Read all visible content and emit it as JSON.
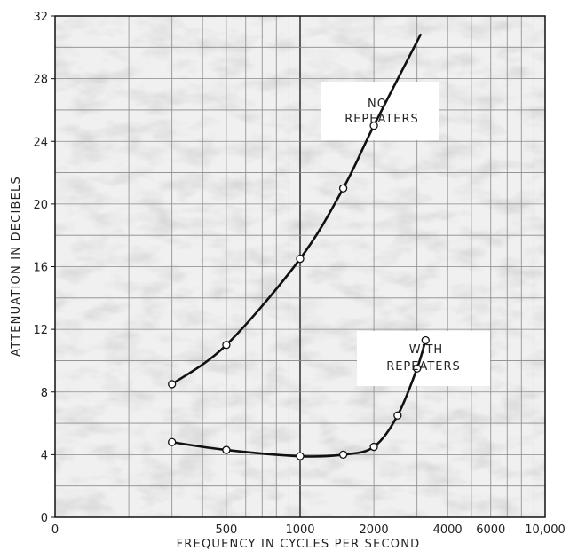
{
  "chart_data": {
    "type": "line",
    "xlabel": "FREQUENCY IN CYCLES PER SECOND",
    "ylabel": "ATTENUATION IN DECIBELS",
    "x_scale": "log",
    "xlim": [
      0,
      10000
    ],
    "ylim": [
      0,
      32
    ],
    "grid": true,
    "x_tick_labels": [
      {
        "value": 0,
        "label": "0"
      },
      {
        "value": 500,
        "label": "500"
      },
      {
        "value": 1000,
        "label": "1000"
      },
      {
        "value": 2000,
        "label": "2000"
      },
      {
        "value": 4000,
        "label": "4000"
      },
      {
        "value": 6000,
        "label": "6000"
      },
      {
        "value": 10000,
        "label": "10,000"
      }
    ],
    "y_ticks": [
      0,
      4,
      8,
      12,
      16,
      20,
      24,
      28,
      32
    ],
    "series": [
      {
        "name": "NO REPEATERS",
        "points": [
          [
            300,
            8.5
          ],
          [
            500,
            11
          ],
          [
            1000,
            16.5
          ],
          [
            1500,
            21
          ],
          [
            2000,
            25
          ]
        ],
        "curve_to": [
          3100,
          30.8
        ]
      },
      {
        "name": "WITH REPEATERS",
        "points": [
          [
            300,
            4.8
          ],
          [
            500,
            4.3
          ],
          [
            1000,
            3.9
          ],
          [
            1500,
            4.0
          ],
          [
            2000,
            4.5
          ],
          [
            2500,
            6.5
          ],
          [
            3000,
            9.5
          ],
          [
            3250,
            11.3
          ]
        ],
        "curve_to": null
      }
    ],
    "annotations": [
      {
        "series": 0,
        "lines": [
          "NO",
          "REPEATERS"
        ]
      },
      {
        "series": 1,
        "lines": [
          "WITH",
          "REPEATERS"
        ]
      }
    ]
  }
}
